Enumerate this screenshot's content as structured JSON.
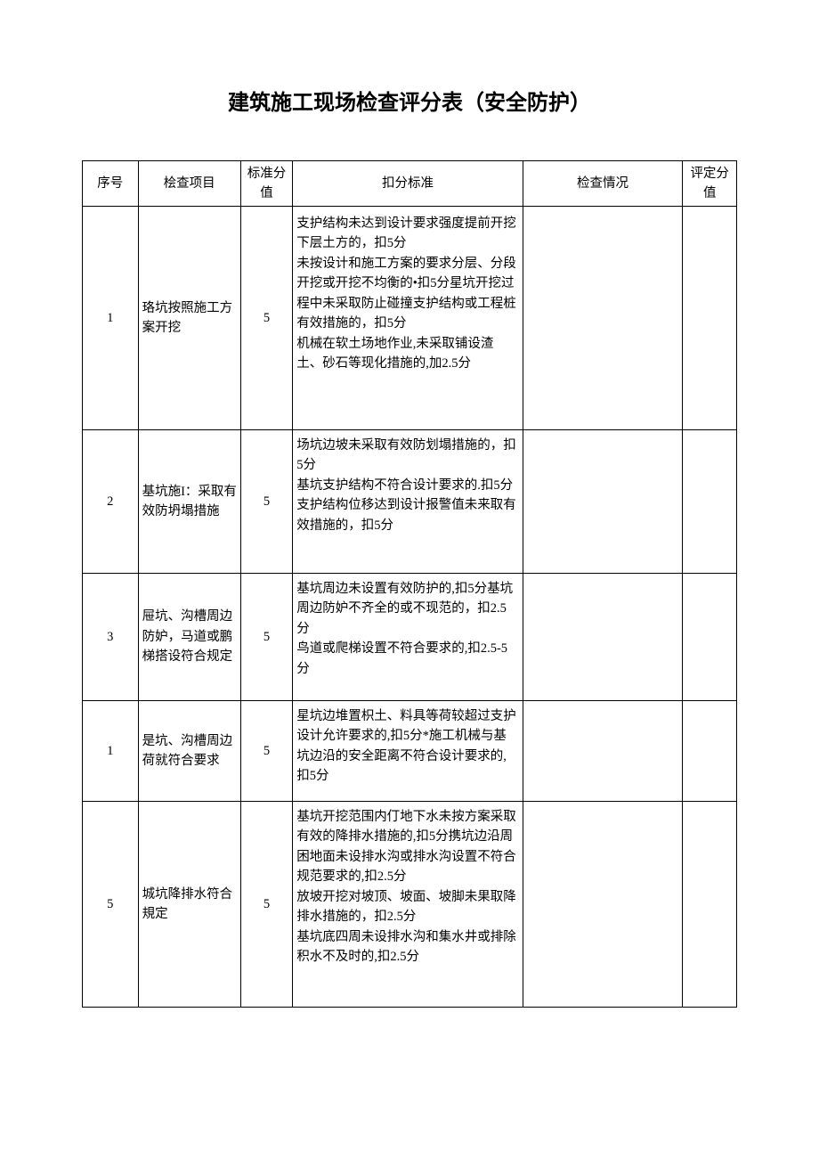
{
  "title": "建筑施工现场检查评分表（安全防护）",
  "headers": {
    "seq": "序号",
    "item": "桧查项目",
    "std": "标准分\n值",
    "crit": "扣分标准",
    "chk": "检查情况",
    "score": "评定分\n值"
  },
  "rows": [
    {
      "seq": "1",
      "item": "珞坑按照施工方案开挖",
      "std": "5",
      "crit": "支护结构未达到设计要求强度提前开挖下层土方的，扣5分\n未按设计和施工方案的要求分层、分段开挖或开挖不均衡的•扣5分星坑开挖过程中未采取防止碰撞支护结构或工程桩有效措施的，扣5分\n机械在软土场地作业,未采取铺设渣土、砂石等现化措施的,加2.5分"
    },
    {
      "seq": "2",
      "item": "基坑施I：采取有效防坍塌措施",
      "std": "5",
      "crit": "场坑边坡未采取有效防划塌措施的，扣5分\n基坑支护结构不符合设计要求的.扣5分\n支护结构位移达到设计报警值未来取有效措施的，扣5分"
    },
    {
      "seq": "3",
      "item": "屉坑、沟槽周边防妒，马道或鹏梯搭设符合规定",
      "std": "5",
      "crit": "基坑周边未设置有效防护的,扣5分基坑周边防妒不齐全的或不现范的，扣2.5分\n鸟道或爬梯设置不符合要求的,扣2.5-5分"
    },
    {
      "seq": "1",
      "item": "是坑、沟槽周边荷就符合要求",
      "std": "5",
      "crit": "星坑边堆置枳土、料具等荷较超过支护设计允许要求的,扣5分*施工机械与基坑边沿的安全距离不符合设计要求的,扣5分"
    },
    {
      "seq": "5",
      "item": "城坑降排水符合規定",
      "std": "5",
      "crit": "基坑开挖范围内仃地下水未按方案采取有效的降排水措施的,扣5分携坑边沿周困地面未设排水沟或排水沟设置不符合规范要求的,扣2.5分\n放坡开挖对坡顶、坡面、坡脚未果取降排水措施的，扣2.5分\n基坑底四周未设排水沟和集水井或排除积水不及时的,扣2.5分"
    }
  ]
}
